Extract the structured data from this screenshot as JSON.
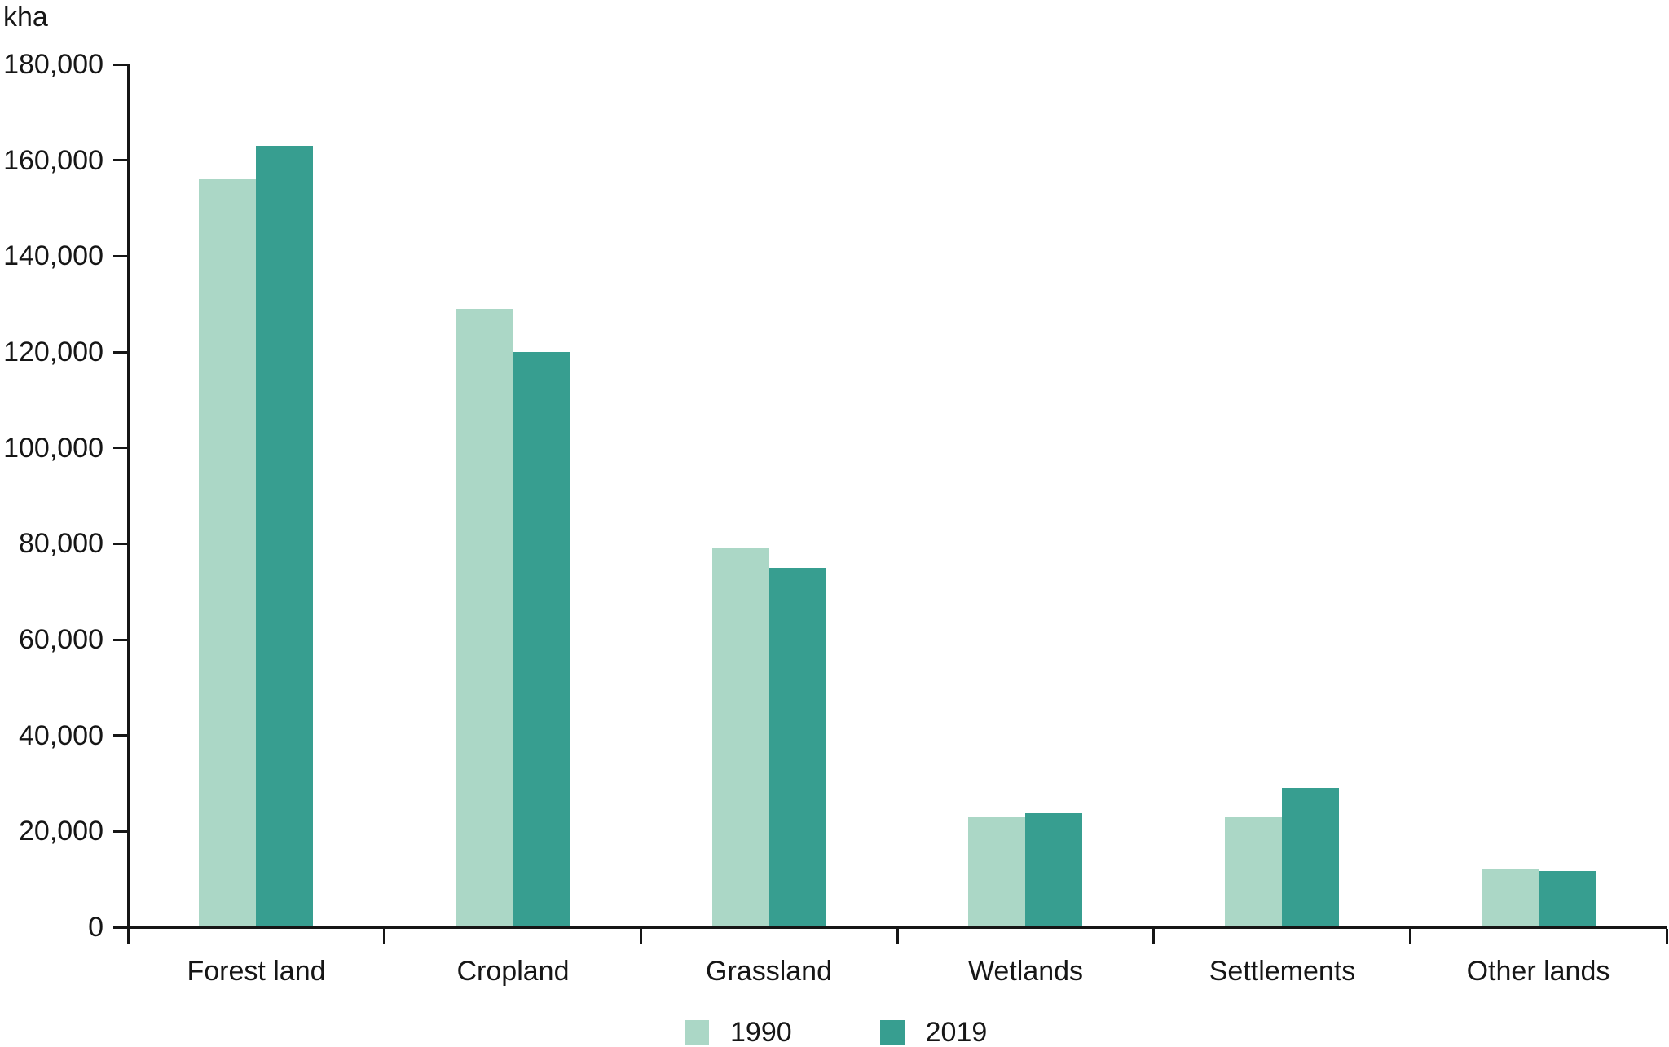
{
  "chart_data": {
    "type": "bar",
    "title": "",
    "unit": "kha",
    "xlabel": "",
    "ylabel": "kha",
    "categories": [
      "Forest land",
      "Cropland",
      "Grassland",
      "Wetlands",
      "Settlements",
      "Other lands"
    ],
    "series": [
      {
        "name": "1990",
        "color": "#abd7c6",
        "values": [
          156000,
          129000,
          79000,
          23000,
          23000,
          12300
        ]
      },
      {
        "name": "2019",
        "color": "#379e90",
        "values": [
          163000,
          120000,
          75000,
          23800,
          29000,
          11800
        ]
      }
    ],
    "ylim": [
      0,
      180000
    ],
    "ytick_step": 20000,
    "ytick_labels": [
      "0",
      "20,000",
      "40,000",
      "60,000",
      "80,000",
      "100,000",
      "120,000",
      "140,000",
      "160,000",
      "180,000"
    ],
    "grid": false,
    "legend_position": "bottom-center",
    "axis_color": "#161616"
  }
}
